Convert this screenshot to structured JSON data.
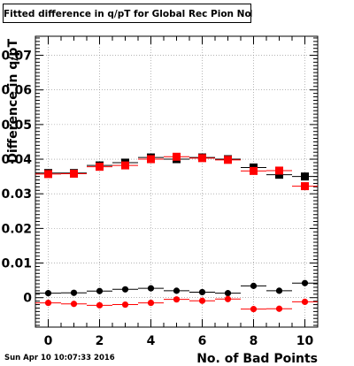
{
  "chart_data": {
    "type": "scatter",
    "title": "Fitted difference in q/pT for Global Rec Pion NoHits",
    "xlabel": "No. of Bad Points",
    "ylabel": "Difference in q/pT",
    "xlim": [
      -0.5,
      10.5
    ],
    "ylim": [
      -0.0085,
      0.0755
    ],
    "xticks": [
      0,
      2,
      4,
      6,
      8,
      10
    ],
    "yticks": [
      0,
      0.01,
      0.02,
      0.03,
      0.04,
      0.05,
      0.06,
      0.07
    ],
    "ytick_labels": [
      "0",
      "0.01",
      "0.02",
      "0.03",
      "0.04",
      "0.05",
      "0.06",
      "0.07"
    ],
    "grid": true,
    "x_error_half_width": 0.5,
    "series": [
      {
        "marker": "square",
        "color": "#000000",
        "x": [
          0,
          1,
          2,
          3,
          4,
          5,
          6,
          7,
          8,
          9,
          10
        ],
        "values": [
          0.036,
          0.036,
          0.0382,
          0.039,
          0.0405,
          0.04,
          0.0405,
          0.04,
          0.0376,
          0.0355,
          0.035
        ]
      },
      {
        "marker": "square",
        "color": "#ff0000",
        "x": [
          0,
          1,
          2,
          3,
          4,
          5,
          6,
          7,
          8,
          9,
          10
        ],
        "values": [
          0.0357,
          0.0358,
          0.0378,
          0.0382,
          0.04,
          0.0407,
          0.0403,
          0.0398,
          0.0366,
          0.0367,
          0.0322
        ]
      },
      {
        "marker": "circle",
        "color": "#000000",
        "x": [
          0,
          1,
          2,
          3,
          4,
          5,
          6,
          7,
          8,
          9,
          10
        ],
        "values": [
          0.0013,
          0.0014,
          0.0019,
          0.0024,
          0.0027,
          0.002,
          0.0016,
          0.0013,
          0.0034,
          0.002,
          0.0042
        ]
      },
      {
        "marker": "circle",
        "color": "#ff0000",
        "x": [
          0,
          1,
          2,
          3,
          4,
          5,
          6,
          7,
          8,
          9,
          10
        ],
        "values": [
          -0.0015,
          -0.0018,
          -0.0022,
          -0.002,
          -0.0015,
          -0.0005,
          -0.0009,
          -0.0004,
          -0.0033,
          -0.0032,
          -0.0012
        ]
      }
    ]
  },
  "footer_timestamp": "Sun Apr 10 10:07:33 2016"
}
